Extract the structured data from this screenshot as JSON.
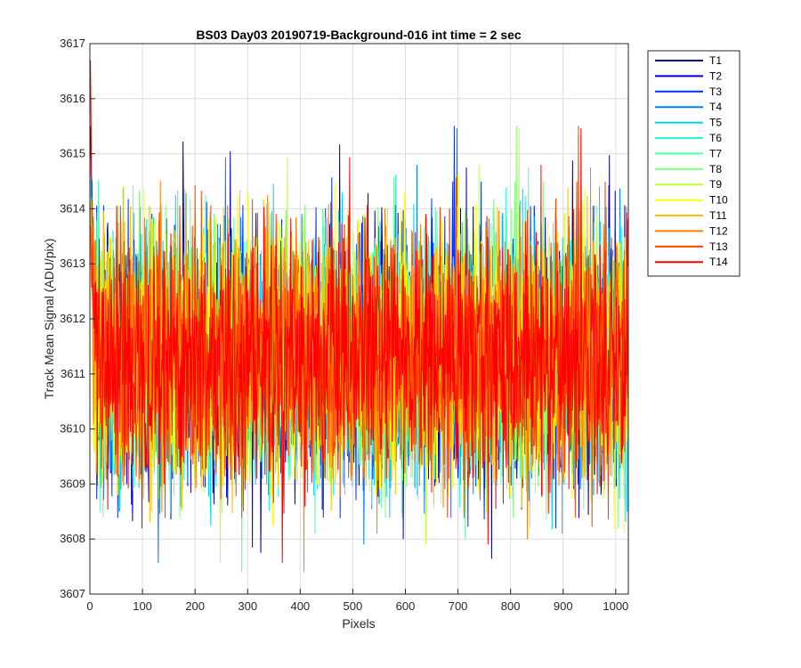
{
  "chart_data": {
    "type": "line",
    "title": "BS03 Day03 20190719-Background-016 int time = 2 sec",
    "xlabel": "Pixels",
    "ylabel": "Track Mean Signal (ADU/pix)",
    "xlim": [
      0,
      1024
    ],
    "ylim": [
      3607,
      3617
    ],
    "xticks": [
      0,
      100,
      200,
      300,
      400,
      500,
      600,
      700,
      800,
      900,
      1000
    ],
    "yticks": [
      3607,
      3608,
      3609,
      3610,
      3611,
      3612,
      3613,
      3614,
      3615,
      3616,
      3617
    ],
    "grid": true,
    "legend_location": "outside-top-right",
    "n_points": 1024,
    "series_mean": 3611.3,
    "series_noise_std": 1.1,
    "start_values": [
      3615.5,
      3615.2,
      3615.0,
      3614.8,
      3614.9,
      3614.6,
      3614.4,
      3614.2,
      3614.0,
      3613.8,
      3613.9,
      3614.1,
      3613.7,
      3616.7
    ],
    "series": [
      {
        "name": "T1",
        "color": "#00008F"
      },
      {
        "name": "T2",
        "color": "#0000DF"
      },
      {
        "name": "T3",
        "color": "#0030FF"
      },
      {
        "name": "T4",
        "color": "#0080FF"
      },
      {
        "name": "T5",
        "color": "#00CFFF"
      },
      {
        "name": "T6",
        "color": "#20FFDF"
      },
      {
        "name": "T7",
        "color": "#50FFAF"
      },
      {
        "name": "T8",
        "color": "#80FF80"
      },
      {
        "name": "T9",
        "color": "#BFFF40"
      },
      {
        "name": "T10",
        "color": "#FFFF00"
      },
      {
        "name": "T11",
        "color": "#FFBF00"
      },
      {
        "name": "T12",
        "color": "#FF8000"
      },
      {
        "name": "T13",
        "color": "#FF4000"
      },
      {
        "name": "T14",
        "color": "#FF0000"
      }
    ]
  }
}
